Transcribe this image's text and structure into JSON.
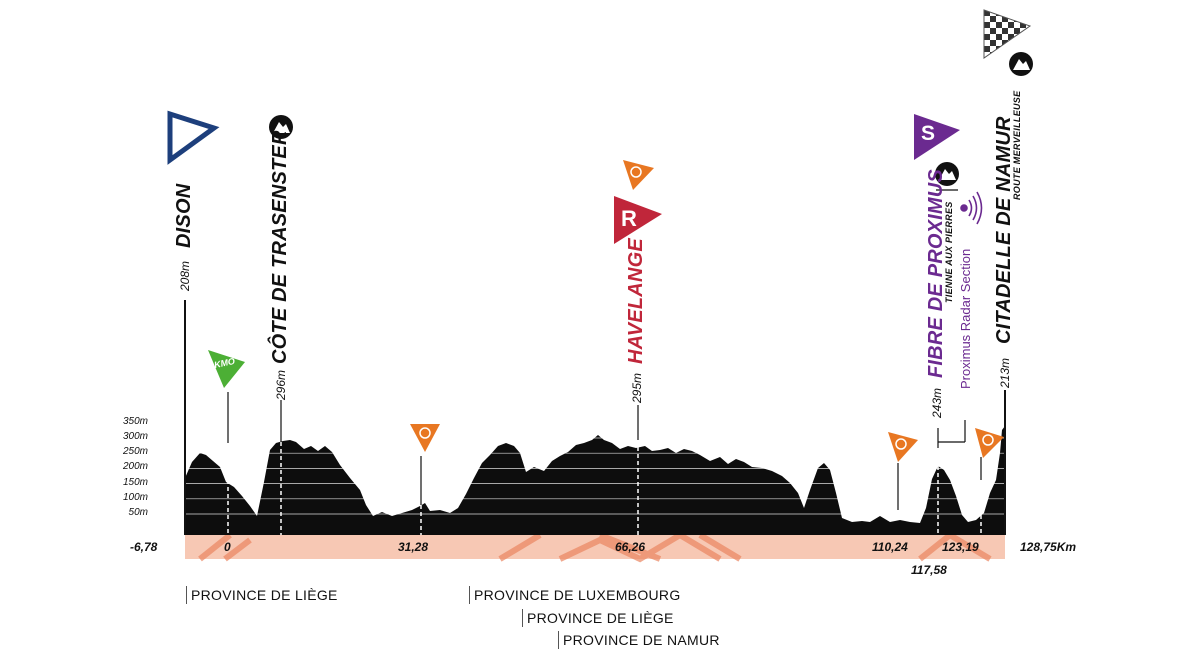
{
  "y_axis": {
    "ticks": [
      "350m",
      "300m",
      "250m",
      "200m",
      "150m",
      "100m",
      "50m"
    ]
  },
  "km_labels": {
    "start": "-6,78",
    "zero": "0",
    "k1": "31,28",
    "k2": "66,26",
    "k3": "110,24",
    "k4": "123,19",
    "k5": "117,58",
    "finish": "128,75Km"
  },
  "places": {
    "dison": {
      "name": "DISON",
      "alt": "208m"
    },
    "trasenster": {
      "name": "CÔTE DE TRASENSTER",
      "alt": "296m"
    },
    "havelange": {
      "name": "HAVELANGE",
      "alt": "295m"
    },
    "proximus": {
      "name": "FIBRE DE PROXIMUS",
      "sub": "TIENNE AUX PIERRES",
      "alt": "243m",
      "radar": "Proximus Radar Section"
    },
    "namur": {
      "name": "CITADELLE DE NAMUR",
      "sub": "ROUTE MERVEILLEUSE",
      "alt": "213m"
    }
  },
  "icons": {
    "kmo_text": "KMO",
    "sprint_text": "R",
    "special_text": "S"
  },
  "provinces": [
    "PROVINCE DE LIÈGE",
    "PROVINCE DE LUXEMBOURG",
    "PROVINCE DE LIÈGE",
    "PROVINCE DE NAMUR"
  ],
  "colors": {
    "profile": "#0d0d0d",
    "band": "#f7c8b4",
    "band_pattern": "#e9855f",
    "start_flag": "#1d3f7c",
    "kmo": "#4caf35",
    "feed": "#e87722",
    "sprint": "#c0263a",
    "special": "#6b2a90"
  }
}
